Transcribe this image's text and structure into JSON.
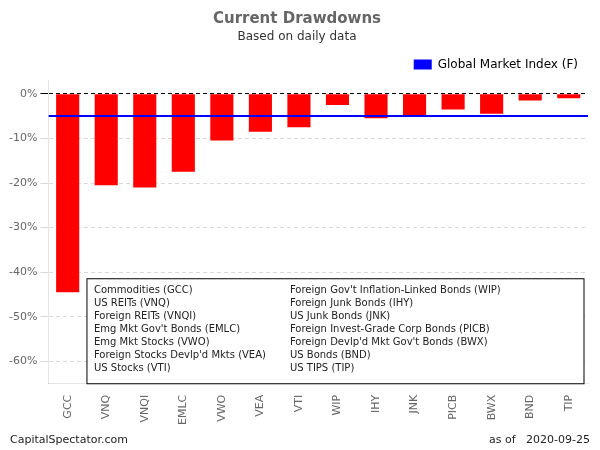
{
  "chart_data": {
    "type": "bar",
    "title": "Current Drawdowns",
    "subtitle": "Based on daily data",
    "categories": [
      "GCC",
      "VNQ",
      "VNQI",
      "EMLC",
      "VWO",
      "VEA",
      "VTI",
      "WIP",
      "IHY",
      "JNK",
      "PICB",
      "BWX",
      "BND",
      "TIP"
    ],
    "values": [
      -44.5,
      -20.5,
      -21.0,
      -17.5,
      -10.5,
      -8.5,
      -7.5,
      -2.5,
      -5.5,
      -5.0,
      -3.5,
      -4.5,
      -1.5,
      -1.0
    ],
    "color": "#FF0000",
    "reference_line": {
      "name": "Global Market Index (F)",
      "value": -5.0,
      "color": "#0000FF"
    },
    "ylim": [
      -65,
      3
    ],
    "yticks": [
      {
        "value": 0,
        "label": "0%"
      },
      {
        "value": -10,
        "label": "-10%"
      },
      {
        "value": -20,
        "label": "-20%"
      },
      {
        "value": -30,
        "label": "-30%"
      },
      {
        "value": -40,
        "label": "-40%"
      },
      {
        "value": -50,
        "label": "-50%"
      },
      {
        "value": -60,
        "label": "-60%"
      }
    ],
    "grid": true,
    "legend": "upper right",
    "annotations": [
      [
        "Commodities (GCC)",
        "Foreign Gov't Inflation-Linked Bonds (WIP)"
      ],
      [
        "US REITs (VNQ)",
        "Foreign Junk Bonds (IHY)"
      ],
      [
        "Foreign REITs (VNQI)",
        "US Junk Bonds (JNK)"
      ],
      [
        "Emg Mkt Gov't Bonds (EMLC)",
        "Foreign Invest-Grade Corp Bonds (PICB)"
      ],
      [
        "Emg Mkt Stocks (VWO)",
        "Foreign Devlp'd Mkt Gov't Bonds (BWX)"
      ],
      [
        "Foreign Stocks Devlp'd Mkts (VEA)",
        "US Bonds (BND)"
      ],
      [
        "US Stocks (VTI)",
        "US TIPS (TIP)"
      ]
    ],
    "footer_left": "CapitalSpectator.com",
    "footer_right": "as of   2020-09-25"
  }
}
